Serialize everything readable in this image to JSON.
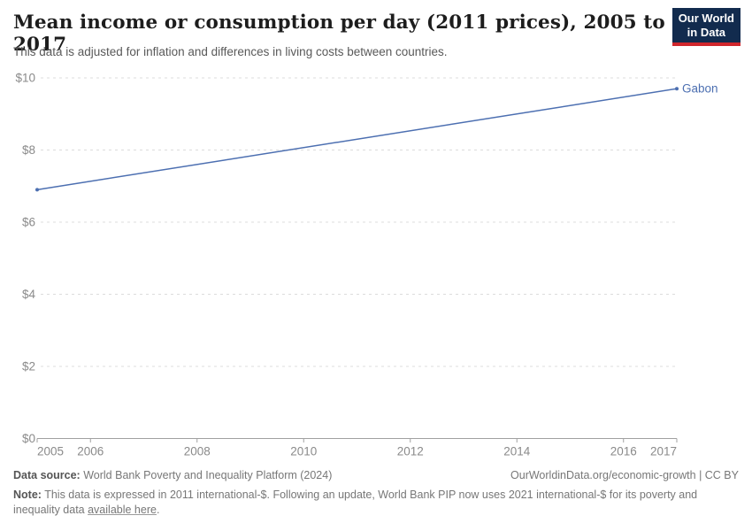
{
  "header": {
    "title": "Mean income or consumption per day (2011 prices), 2005 to 2017",
    "subtitle": "This data is adjusted for inflation and differences in living costs between countries.",
    "logo_line1": "Our World",
    "logo_line2": "in Data"
  },
  "chart_data": {
    "type": "line",
    "title": "Mean income or consumption per day (2011 prices), 2005 to 2017",
    "subtitle": "This data is adjusted for inflation and differences in living costs between countries.",
    "xlabel": "",
    "ylabel": "",
    "xlim": [
      2005,
      2017
    ],
    "ylim": [
      0,
      10
    ],
    "x_ticks": [
      2005,
      2006,
      2008,
      2010,
      2012,
      2014,
      2016,
      2017
    ],
    "y_ticks": [
      0,
      2,
      4,
      6,
      8,
      10
    ],
    "y_tick_prefix": "$",
    "grid": "horizontal-dashed",
    "legend_position": "end-of-line-label",
    "series": [
      {
        "name": "Gabon",
        "x": [
          2005,
          2017
        ],
        "values": [
          6.9,
          9.7
        ],
        "color": "#4c6fb1",
        "markers": "endpoints"
      }
    ]
  },
  "footer": {
    "source_label": "Data source:",
    "source_text": "World Bank Poverty and Inequality Platform (2024)",
    "rights": "OurWorldinData.org/economic-growth | CC BY",
    "note_label": "Note:",
    "note_before_link": "This data is expressed in 2011 international-$. Following an update, World Bank PIP now uses 2021 international-$ for its poverty and inequality data",
    "note_link": "available here",
    "note_after_link": "."
  },
  "colors": {
    "line": "#4c6fb1",
    "logo_navy": "#122b4e",
    "logo_red": "#d0262c",
    "grid": "#dcdcdc",
    "axis": "#a1a1a1",
    "tick_text": "#8a8a8a"
  }
}
